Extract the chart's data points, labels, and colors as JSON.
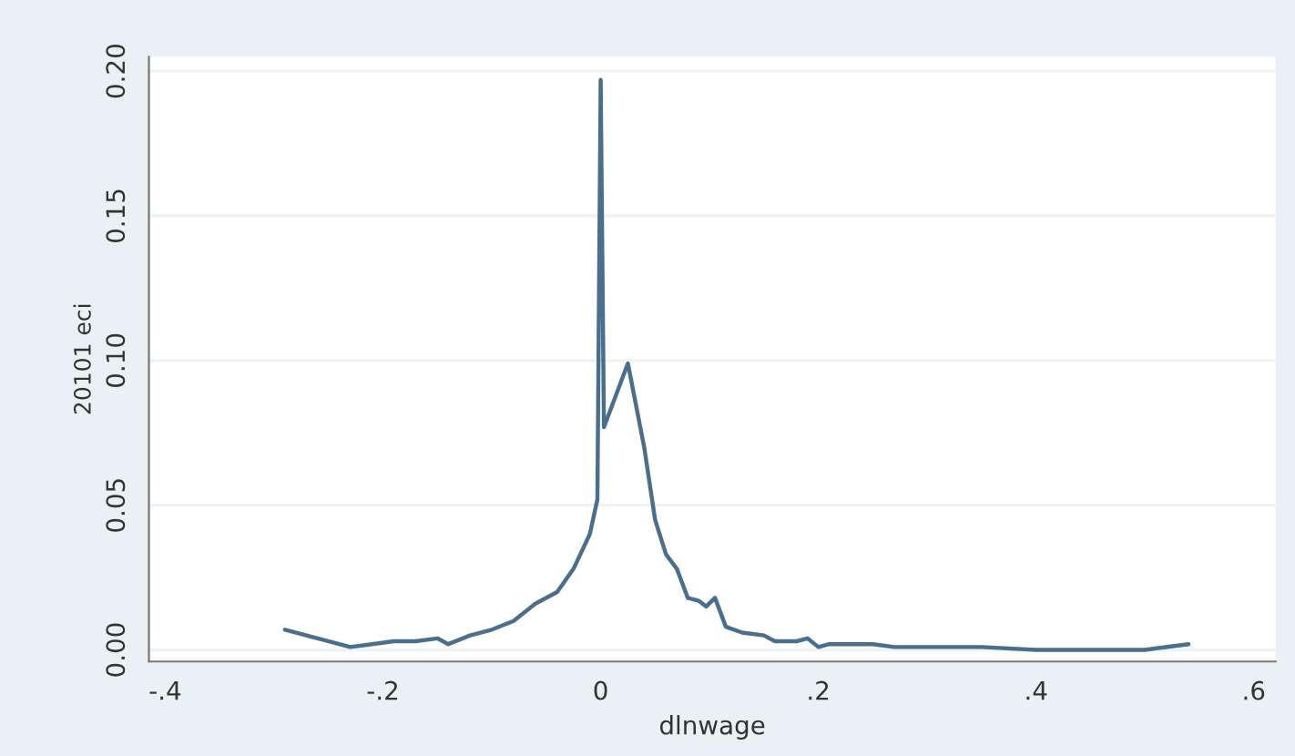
{
  "chart_data": {
    "type": "line",
    "xlabel": "dlnwage",
    "ylabel": "20101 eci",
    "x": [
      -0.29,
      -0.26,
      -0.23,
      -0.21,
      -0.19,
      -0.17,
      -0.15,
      -0.14,
      -0.12,
      -0.1,
      -0.08,
      -0.06,
      -0.04,
      -0.025,
      -0.01,
      -0.003,
      0,
      0.003,
      0.025,
      0.04,
      0.05,
      0.06,
      0.07,
      0.08,
      0.09,
      0.097,
      0.105,
      0.115,
      0.13,
      0.15,
      0.16,
      0.18,
      0.19,
      0.2,
      0.21,
      0.23,
      0.25,
      0.27,
      0.3,
      0.35,
      0.4,
      0.45,
      0.5,
      0.54
    ],
    "series": [
      {
        "color": "#4a6f8c",
        "values": [
          0.007,
          0.004,
          0.001,
          0.002,
          0.003,
          0.003,
          0.004,
          0.002,
          0.005,
          0.007,
          0.01,
          0.016,
          0.02,
          0.028,
          0.04,
          0.052,
          0.197,
          0.077,
          0.099,
          0.07,
          0.045,
          0.033,
          0.028,
          0.018,
          0.017,
          0.015,
          0.018,
          0.008,
          0.006,
          0.005,
          0.003,
          0.003,
          0.004,
          0.001,
          0.002,
          0.002,
          0.002,
          0.001,
          0.001,
          0.001,
          0.0,
          0.0,
          0.0,
          0.002
        ]
      }
    ],
    "xlim": [
      -0.415,
      0.62
    ],
    "ylim": [
      -0.004,
      0.205
    ],
    "xticks": [
      {
        "value": -0.4,
        "label": "-.4"
      },
      {
        "value": -0.2,
        "label": "-.2"
      },
      0,
      {
        "value": 0.2,
        "label": ".2"
      },
      {
        "value": 0.4,
        "label": ".4"
      },
      {
        "value": 0.6,
        "label": ".6"
      }
    ],
    "yticks": [
      {
        "value": 0,
        "label": "0.00"
      },
      {
        "value": 0.05,
        "label": "0.05"
      },
      {
        "value": 0.1,
        "label": "0.10"
      },
      {
        "value": 0.15,
        "label": "0.15"
      },
      {
        "value": 0.2,
        "label": "0.20"
      }
    ],
    "grid": "y",
    "legend": false,
    "marker": "none",
    "line_style": "solid"
  }
}
